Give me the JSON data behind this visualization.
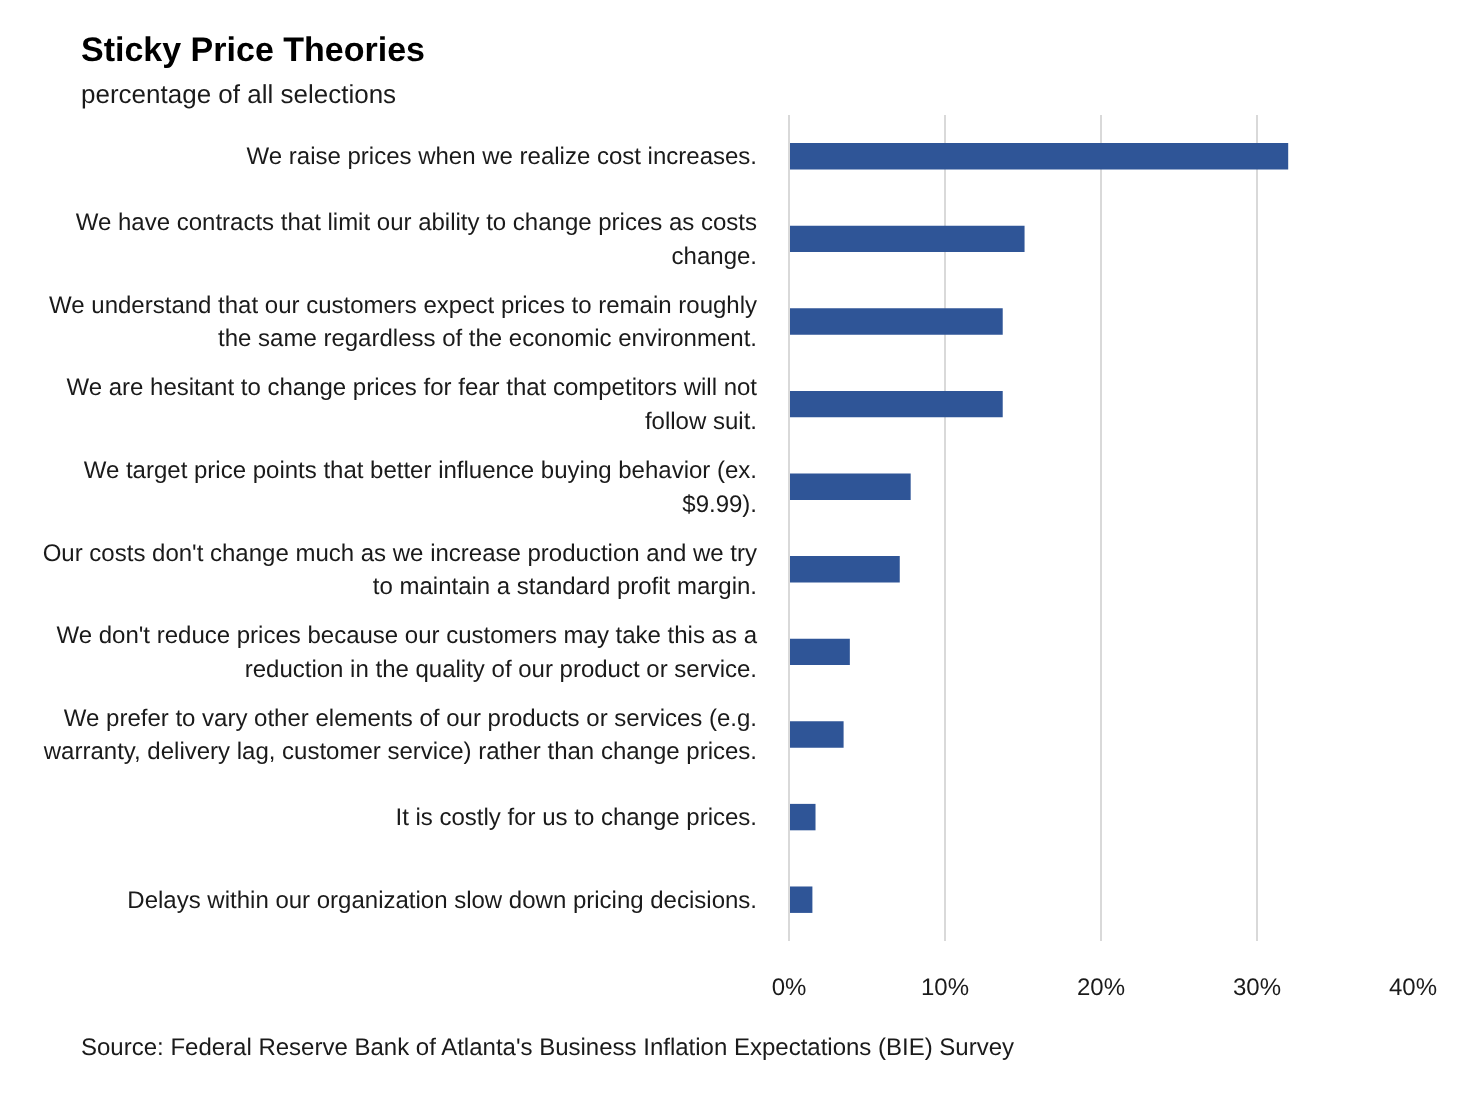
{
  "chart_data": {
    "type": "bar",
    "orientation": "horizontal",
    "title": "Sticky Price Theories",
    "subtitle": "percentage of all selections",
    "categories": [
      "We raise prices when we realize cost increases.",
      "We have contracts that limit our ability to change prices as costs change.",
      "We understand that our customers expect prices to remain roughly the same regardless of the economic environment.",
      "We are hesitant to change prices for fear that competitors will not follow suit.",
      "We target price points that better influence buying behavior (ex. $9.99).",
      "Our costs don't change much as we increase production and we try to maintain a standard profit margin.",
      "We don't reduce prices because our customers may take this as a reduction in the quality of our product or service.",
      "We prefer to vary other elements of our products or services (e.g. warranty, delivery lag, customer service) rather than change prices.",
      "It is costly for us to change prices.",
      "Delays within our organization slow down pricing decisions."
    ],
    "values": [
      32.0,
      15.1,
      13.7,
      13.7,
      7.8,
      7.1,
      3.9,
      3.5,
      1.7,
      1.5
    ],
    "color": "#2f5597",
    "xlim": [
      0,
      40
    ],
    "xticks": [
      {
        "value": 0,
        "label": "0%"
      },
      {
        "value": 10,
        "label": "10%"
      },
      {
        "value": 20,
        "label": "20%"
      },
      {
        "value": 30,
        "label": "30%"
      },
      {
        "value": 40,
        "label": "40%"
      }
    ],
    "grid": "x",
    "annotations": [
      "Source: Federal Reserve Bank of Atlanta's Business Inflation Expectations (BIE) Survey"
    ]
  }
}
